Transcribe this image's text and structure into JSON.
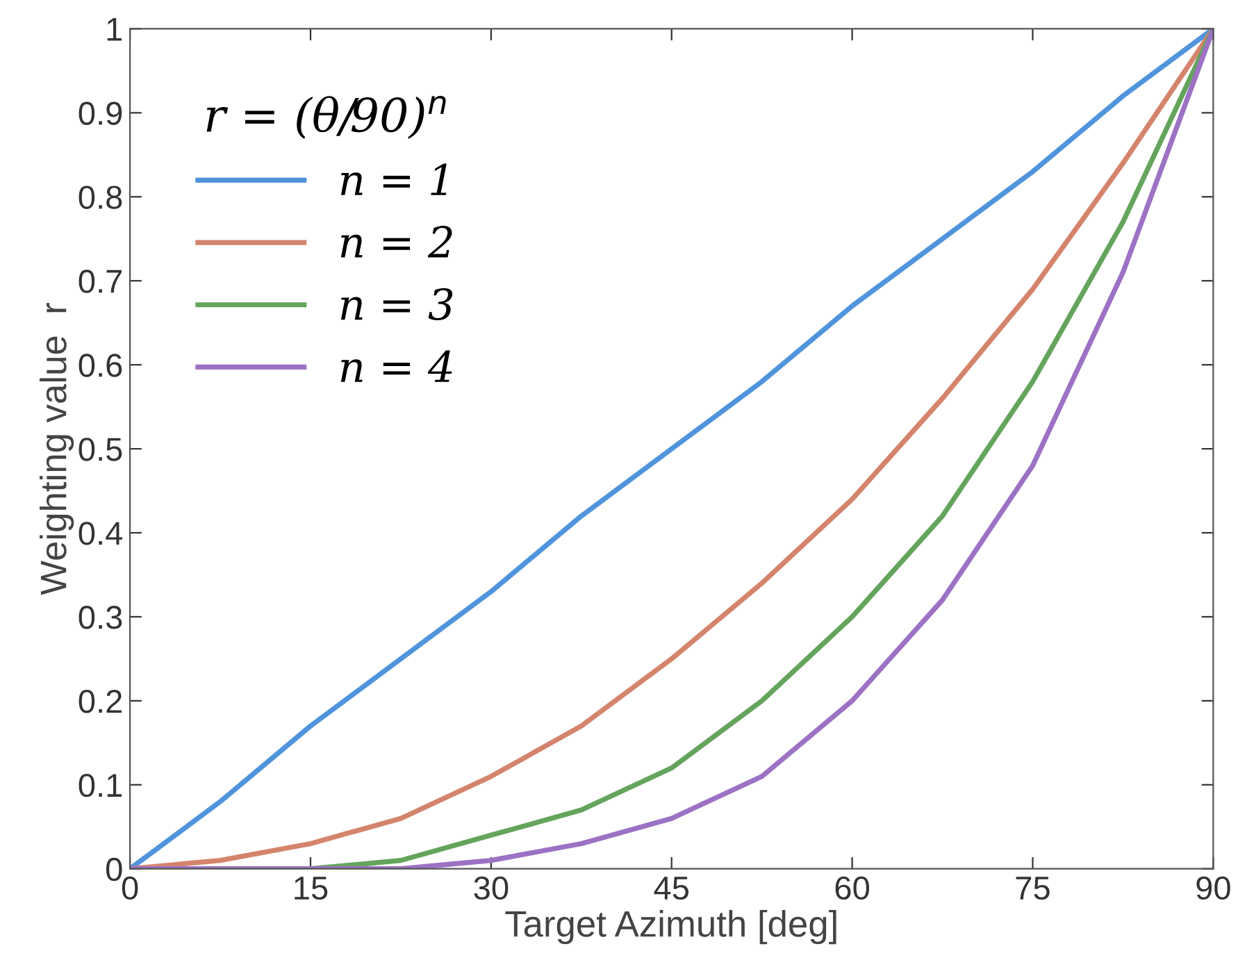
{
  "chart_data": {
    "type": "line",
    "xlabel": "Target Azimuth [deg]",
    "ylabel": "Weighting value  r",
    "legend_title": "r = (θ/90)$^{n}$",
    "x": [
      0,
      7.5,
      15,
      22.5,
      30,
      37.5,
      45,
      52.5,
      60,
      67.5,
      75,
      82.5,
      90
    ],
    "series": [
      {
        "name": "n = 1",
        "color": "#4f94dc",
        "values": [
          0,
          0.08,
          0.17,
          0.25,
          0.33,
          0.42,
          0.5,
          0.58,
          0.67,
          0.75,
          0.83,
          0.92,
          1
        ]
      },
      {
        "name": "n = 2",
        "color": "#d4846c",
        "values": [
          0,
          0.01,
          0.03,
          0.06,
          0.11,
          0.17,
          0.25,
          0.34,
          0.44,
          0.56,
          0.69,
          0.84,
          1
        ]
      },
      {
        "name": "n = 3",
        "color": "#64a45c",
        "values": [
          0,
          0,
          0,
          0.01,
          0.04,
          0.07,
          0.12,
          0.2,
          0.3,
          0.42,
          0.58,
          0.77,
          1
        ]
      },
      {
        "name": "n = 4",
        "color": "#9c72c4",
        "values": [
          0,
          0,
          0,
          0,
          0.01,
          0.03,
          0.06,
          0.11,
          0.2,
          0.32,
          0.48,
          0.71,
          1
        ]
      }
    ],
    "xlim": [
      0,
      90
    ],
    "ylim": [
      0,
      1
    ],
    "xticks": [
      0,
      15,
      30,
      45,
      60,
      75,
      90
    ],
    "yticks": [
      0,
      0.1,
      0.2,
      0.3,
      0.4,
      0.5,
      0.6,
      0.7,
      0.8,
      0.9,
      1
    ],
    "grid": false,
    "legend": "top left",
    "marker": "none",
    "line_style": "solid"
  }
}
